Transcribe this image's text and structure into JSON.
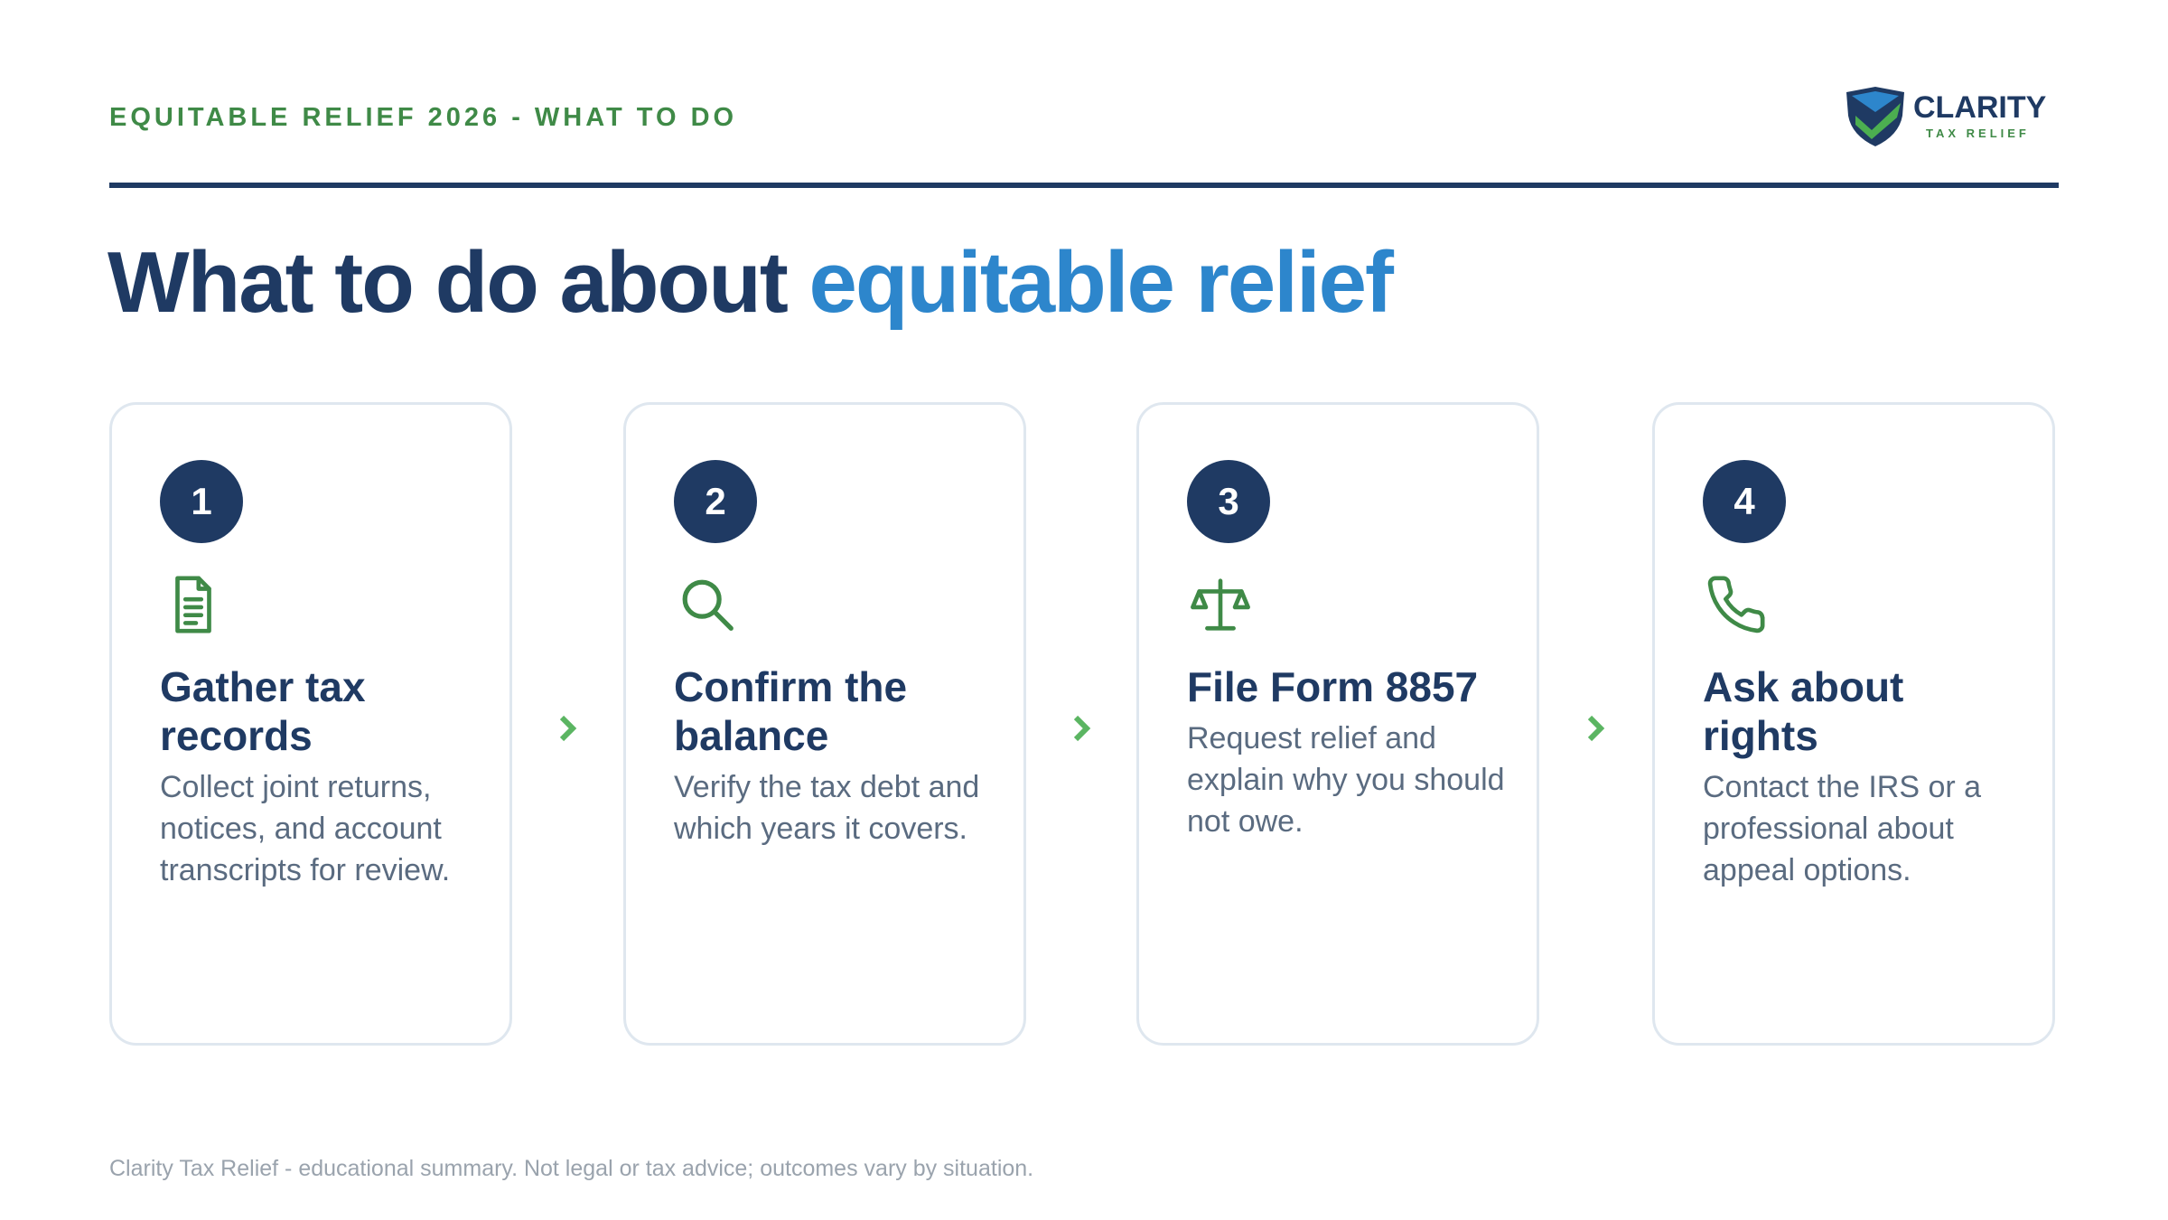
{
  "header": {
    "eyebrow": "EQUITABLE RELIEF 2026 - WHAT TO DO",
    "logo": {
      "name": "CLARITY",
      "tagline": "TAX RELIEF"
    }
  },
  "title": {
    "main": "What to do about",
    "highlight": "equitable relief"
  },
  "steps": [
    {
      "number": "1",
      "heading": "Gather tax records",
      "body": "Collect joint returns, notices, and account transcripts for review."
    },
    {
      "number": "2",
      "heading": "Confirm the balance",
      "body": "Verify the tax debt and which years it covers."
    },
    {
      "number": "3",
      "heading": "File Form 8857",
      "body": "Request relief and explain why you should not owe."
    },
    {
      "number": "4",
      "heading": "Ask about rights",
      "body": "Contact the IRS or a professional about appeal options."
    }
  ],
  "footer": "Clarity Tax Relief - educational summary. Not legal or tax advice; outcomes vary by situation."
}
